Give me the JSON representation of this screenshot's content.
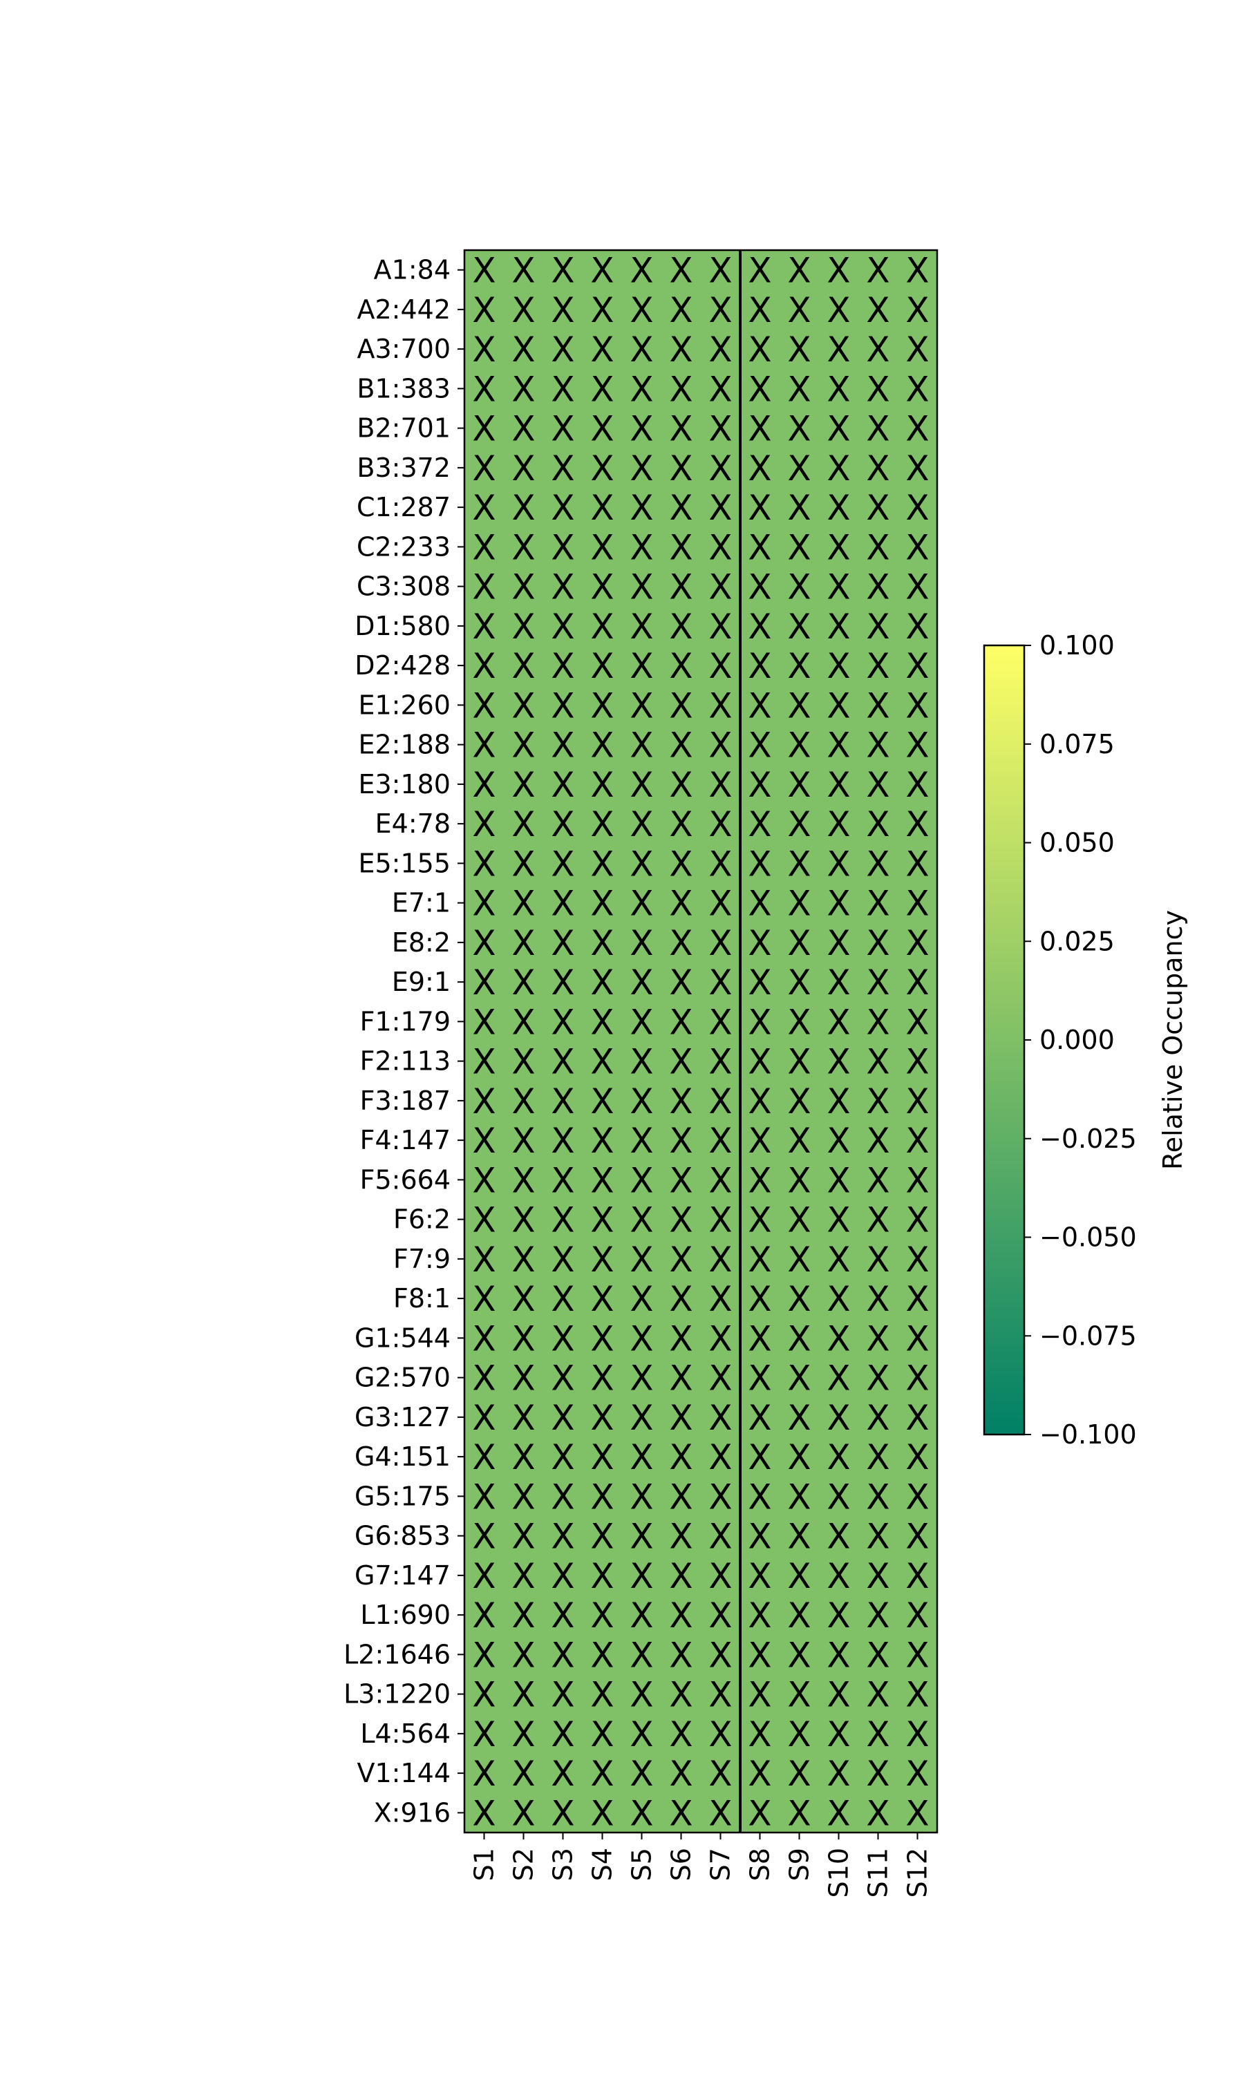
{
  "chart_data": {
    "type": "heatmap",
    "title": "",
    "xlabel": "",
    "ylabel": "",
    "columns": [
      "S1",
      "S2",
      "S3",
      "S4",
      "S5",
      "S6",
      "S7",
      "S8",
      "S9",
      "S10",
      "S11",
      "S12"
    ],
    "rows": [
      "A1:84",
      "A2:442",
      "A3:700",
      "B1:383",
      "B2:701",
      "B3:372",
      "C1:287",
      "C2:233",
      "C3:308",
      "D1:580",
      "D2:428",
      "E1:260",
      "E2:188",
      "E3:180",
      "E4:78",
      "E5:155",
      "E7:1",
      "E8:2",
      "E9:1",
      "F1:179",
      "F2:113",
      "F3:187",
      "F4:147",
      "F5:664",
      "F6:2",
      "F7:9",
      "F8:1",
      "G1:544",
      "G2:570",
      "G3:127",
      "G4:151",
      "G5:175",
      "G6:853",
      "G7:147",
      "L1:690",
      "L2:1646",
      "L3:1220",
      "L4:564",
      "V1:144",
      "X:916"
    ],
    "cell_value": 0.0,
    "cell_marker": "X",
    "group_separator_after_column": "S7",
    "colorbar": {
      "label": "Relative Occupancy",
      "range": [
        -0.1,
        0.1
      ],
      "ticks": [
        "−0.100",
        "−0.075",
        "−0.050",
        "−0.025",
        "0.000",
        "0.025",
        "0.050",
        "0.075",
        "0.100"
      ],
      "tick_values": [
        -0.1,
        -0.075,
        -0.05,
        -0.025,
        0.0,
        0.025,
        0.05,
        0.075,
        0.1
      ],
      "colormap": "summer",
      "color_low": "#008066",
      "color_high": "#ffff66"
    }
  }
}
